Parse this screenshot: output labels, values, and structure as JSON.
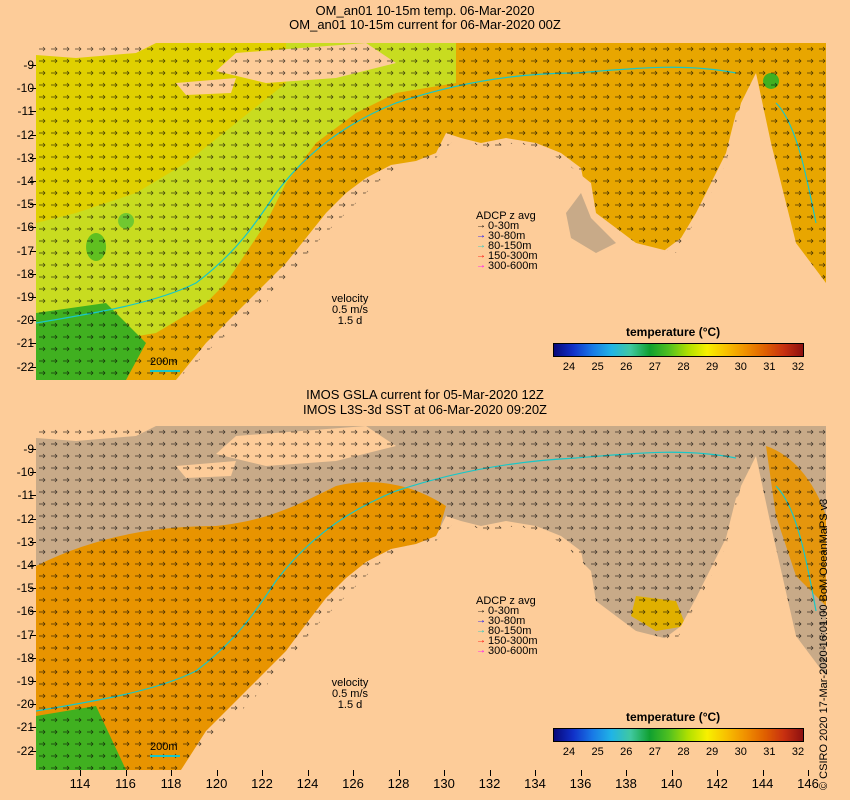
{
  "top_panel": {
    "title_line1": "OM_an01 10-15m temp. 06-Mar-2020",
    "title_line2": "OM_an01 10-15m current for 06-Mar-2020 00Z"
  },
  "bottom_panel": {
    "title_line1": "IMOS GSLA current for 05-Mar-2020 12Z",
    "title_line2": "IMOS L3S-3d SST at 06-Mar-2020 09:20Z"
  },
  "y_axis_labels": [
    "-9",
    "-10",
    "-11",
    "-12",
    "-13",
    "-14",
    "-15",
    "-16",
    "-17",
    "-18",
    "-19",
    "-20",
    "-21",
    "-22"
  ],
  "x_axis_labels": [
    "114",
    "116",
    "118",
    "120",
    "122",
    "124",
    "126",
    "128",
    "130",
    "132",
    "134",
    "136",
    "138",
    "140",
    "142",
    "144",
    "146"
  ],
  "adcp_legend": {
    "title": "ADCP z avg",
    "items": [
      {
        "label": "0-30m",
        "color": "#000000"
      },
      {
        "label": "30-80m",
        "color": "#0000ff"
      },
      {
        "label": "80-150m",
        "color": "#19c7c7"
      },
      {
        "label": "150-300m",
        "color": "#ff0000"
      },
      {
        "label": "300-600m",
        "color": "#ff00ff"
      }
    ]
  },
  "velocity_key": {
    "label": "velocity",
    "value": "0.5 m/s",
    "time": "1.5 d"
  },
  "depth_scale": "200m",
  "colorbar": {
    "title": "temperature (°C)",
    "ticks": [
      "24",
      "25",
      "26",
      "27",
      "28",
      "29",
      "30",
      "31",
      "32"
    ],
    "colors": [
      "#08087a",
      "#1030c8",
      "#1878e6",
      "#20b4e6",
      "#40c8a0",
      "#10a030",
      "#50c020",
      "#b0e000",
      "#f8f000",
      "#f8c000",
      "#f09000",
      "#e06000",
      "#c83010",
      "#8c1010"
    ]
  },
  "colors": {
    "land": "#fdcc99",
    "missing": "#c8aa88",
    "contour": "#19c7c7"
  },
  "credit": "© CSIRO 2020  17-Mar-2020 16:01:00 BoM OceanMaPS v3"
}
